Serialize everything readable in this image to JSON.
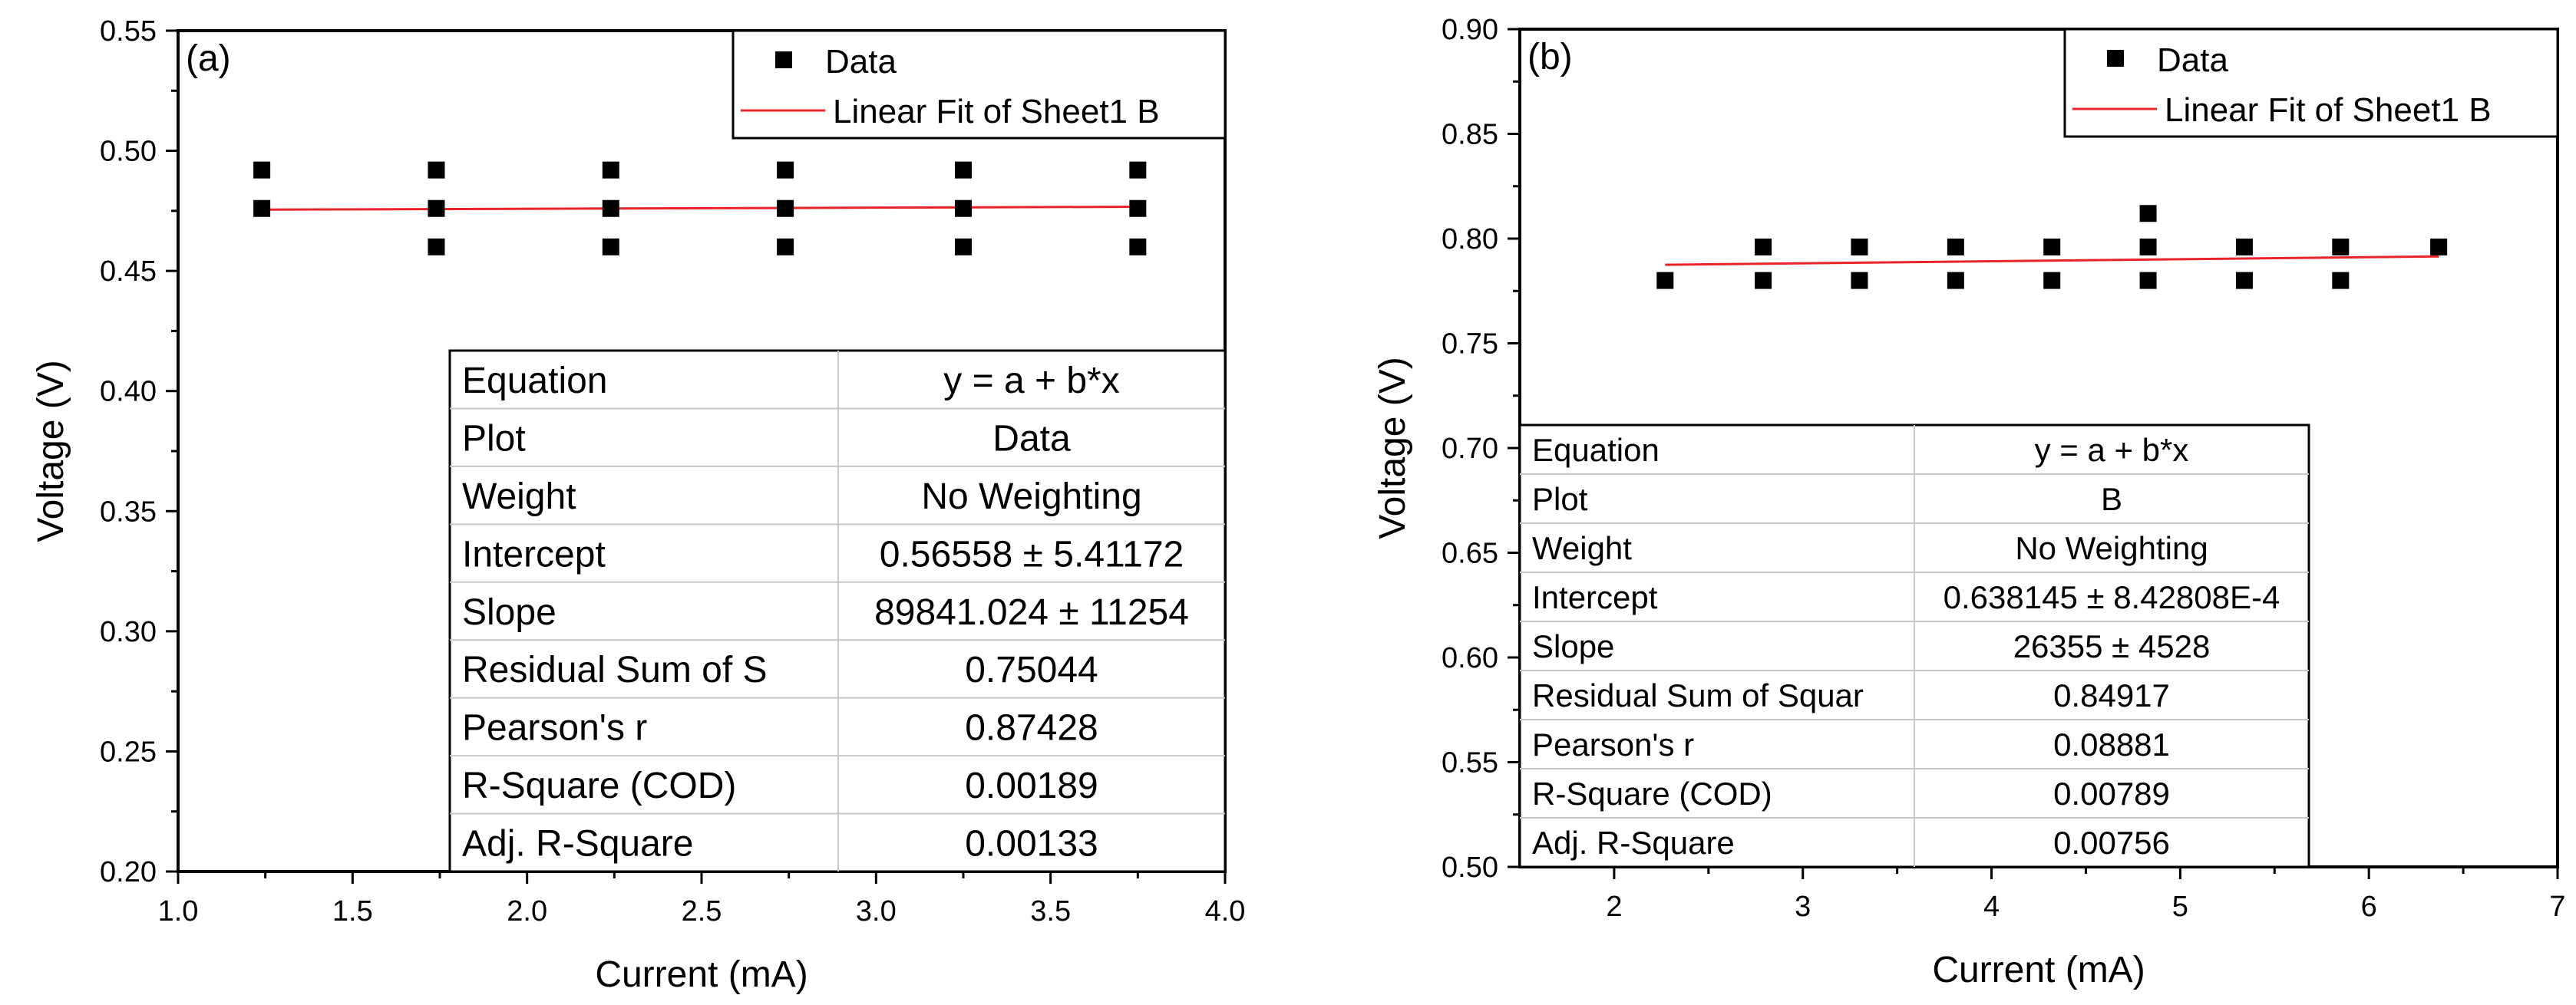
{
  "chart_data": [
    {
      "type": "scatter",
      "panel_label": "(a)",
      "xlabel": "Current (mA)",
      "ylabel": "Voltage (V)",
      "xlim": [
        1.0,
        4.0
      ],
      "ylim": [
        0.2,
        0.55
      ],
      "x_ticks": [
        "1.0",
        "1.5",
        "2.0",
        "2.5",
        "3.0",
        "3.5",
        "4.0"
      ],
      "y_ticks": [
        "0.20",
        "0.25",
        "0.30",
        "0.35",
        "0.40",
        "0.45",
        "0.50",
        "0.55"
      ],
      "series": [
        {
          "name": "Data",
          "kind": "scatter",
          "points": [
            [
              1.24,
              0.492
            ],
            [
              1.24,
              0.476
            ],
            [
              1.74,
              0.492
            ],
            [
              1.74,
              0.476
            ],
            [
              1.74,
              0.46
            ],
            [
              2.24,
              0.492
            ],
            [
              2.24,
              0.476
            ],
            [
              2.24,
              0.46
            ],
            [
              2.74,
              0.492
            ],
            [
              2.74,
              0.476
            ],
            [
              2.74,
              0.46
            ],
            [
              3.25,
              0.492
            ],
            [
              3.25,
              0.476
            ],
            [
              3.25,
              0.46
            ],
            [
              3.75,
              0.492
            ],
            [
              3.75,
              0.476
            ],
            [
              3.75,
              0.46
            ]
          ]
        },
        {
          "name": "Linear Fit of Sheet1 B",
          "kind": "line",
          "color": "#e8232a",
          "points": [
            [
              1.24,
              0.4755
            ],
            [
              3.75,
              0.4767
            ]
          ]
        }
      ],
      "legend": [
        "Data",
        "Linear Fit of Sheet1 B"
      ],
      "stats_table": [
        [
          "Equation",
          "y = a + b*x"
        ],
        [
          "Plot",
          "Data"
        ],
        [
          "Weight",
          "No Weighting"
        ],
        [
          "Intercept",
          "0.56558 ± 5.41172"
        ],
        [
          "Slope",
          "89841.024 ± 11254"
        ],
        [
          "Residual Sum of S",
          "0.75044"
        ],
        [
          "Pearson's r",
          "0.87428"
        ],
        [
          "R-Square (COD)",
          "0.00189"
        ],
        [
          "Adj. R-Square",
          "0.00133"
        ]
      ]
    },
    {
      "type": "scatter",
      "panel_label": "(b)",
      "xlabel": "Current (mA)",
      "ylabel": "Voltage (V)",
      "xlim": [
        1.5,
        7.0
      ],
      "ylim": [
        0.5,
        0.9
      ],
      "x_ticks": [
        "2",
        "3",
        "4",
        "5",
        "6",
        "7"
      ],
      "y_ticks": [
        "0.50",
        "0.55",
        "0.60",
        "0.65",
        "0.70",
        "0.75",
        "0.80",
        "0.85",
        "0.90"
      ],
      "series": [
        {
          "name": "Data",
          "kind": "scatter",
          "points": [
            [
              2.27,
              0.78
            ],
            [
              2.79,
              0.796
            ],
            [
              2.79,
              0.78
            ],
            [
              3.3,
              0.796
            ],
            [
              3.3,
              0.78
            ],
            [
              3.81,
              0.796
            ],
            [
              3.81,
              0.78
            ],
            [
              4.32,
              0.796
            ],
            [
              4.32,
              0.78
            ],
            [
              4.83,
              0.812
            ],
            [
              4.83,
              0.796
            ],
            [
              4.83,
              0.78
            ],
            [
              5.34,
              0.796
            ],
            [
              5.34,
              0.78
            ],
            [
              5.85,
              0.796
            ],
            [
              5.85,
              0.78
            ],
            [
              6.37,
              0.796
            ]
          ]
        },
        {
          "name": "Linear Fit of Sheet1 B",
          "kind": "line",
          "color": "#e8232a",
          "points": [
            [
              2.27,
              0.7875
            ],
            [
              6.37,
              0.7915
            ]
          ]
        }
      ],
      "legend": [
        "Data",
        "Linear Fit of Sheet1 B"
      ],
      "stats_table": [
        [
          "Equation",
          "y = a + b*x"
        ],
        [
          "Plot",
          "B"
        ],
        [
          "Weight",
          "No Weighting"
        ],
        [
          "Intercept",
          "0.638145 ± 8.42808E-4"
        ],
        [
          "Slope",
          "26355 ± 4528"
        ],
        [
          "Residual Sum of Squar",
          "0.84917"
        ],
        [
          "Pearson's r",
          "0.08881"
        ],
        [
          "R-Square (COD)",
          "0.00789"
        ],
        [
          "Adj. R-Square",
          "0.00756"
        ]
      ]
    }
  ]
}
